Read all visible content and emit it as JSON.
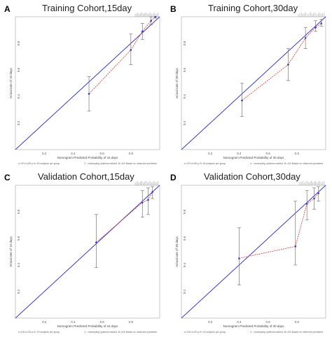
{
  "chart_data": [
    {
      "type": "scatter",
      "letter": "A",
      "title": "Training Cohort,15day",
      "xlabel": "Nomogram Predicted Probability of 15 days",
      "ylabel": "Actual rate of 15 days",
      "xlim": [
        0.0,
        1.0
      ],
      "ylim": [
        0.0,
        1.0
      ],
      "xticks": [
        "0.0",
        "0.2",
        "0.4",
        "0.6",
        "0.8",
        "1.0"
      ],
      "yticks": [
        "0.0",
        "0.2",
        "0.4",
        "0.6",
        "0.8",
        "1.0"
      ],
      "series": [
        {
          "x": [
            0.51,
            0.8,
            0.88,
            0.94,
            0.97
          ],
          "y": [
            0.42,
            0.75,
            0.89,
            0.97,
            1.0
          ],
          "lower": [
            0.29,
            0.64,
            0.83,
            0.94,
            0.99
          ],
          "upper": [
            0.55,
            0.87,
            0.95,
            1.0,
            1.0
          ]
        }
      ],
      "footnote_left": "n=370 d=89 p=5, 50 subjects per group",
      "footnote_right": "X - resampling optimism added, B=100 Based on observed-predicted"
    },
    {
      "type": "scatter",
      "letter": "B",
      "title": "Training Cohort,30day",
      "xlabel": "Nomogram Predicted Probability of 30 days",
      "ylabel": "Actual rate of 30 days",
      "xlim": [
        0.0,
        1.0
      ],
      "ylim": [
        0.0,
        1.0
      ],
      "xticks": [
        "0.0",
        "0.2",
        "0.4",
        "0.6",
        "0.8",
        "1.0"
      ],
      "yticks": [
        "0.0",
        "0.2",
        "0.4",
        "0.6",
        "0.8",
        "1.0"
      ],
      "series": [
        {
          "x": [
            0.42,
            0.74,
            0.86,
            0.93,
            0.97
          ],
          "y": [
            0.37,
            0.64,
            0.84,
            0.92,
            0.95
          ],
          "lower": [
            0.25,
            0.52,
            0.76,
            0.89,
            0.93
          ],
          "upper": [
            0.5,
            0.76,
            0.92,
            0.97,
            0.98
          ]
        }
      ],
      "footnote_left": "n=370 d=89 p=5, 50 subjects per group",
      "footnote_right": "X - resampling optimism added, B=100 Based on observed-predicted"
    },
    {
      "type": "scatter",
      "letter": "C",
      "title": "Validation Cohort,15day",
      "xlabel": "Nomogram Predicted Probability of 15 days",
      "ylabel": "Actual rate of 15 days",
      "xlim": [
        0.0,
        1.0
      ],
      "ylim": [
        0.0,
        1.0
      ],
      "xticks": [
        "0.0",
        "0.2",
        "0.4",
        "0.6",
        "0.8",
        "1.0"
      ],
      "yticks": [
        "0.0",
        "0.2",
        "0.4",
        "0.6",
        "0.8",
        "1.0"
      ],
      "series": [
        {
          "x": [
            0.56,
            0.88,
            0.92,
            0.95
          ],
          "y": [
            0.57,
            0.87,
            0.89,
            0.95
          ],
          "lower": [
            0.38,
            0.76,
            0.78,
            0.9
          ],
          "upper": [
            0.78,
            0.96,
            0.98,
            0.99
          ]
        }
      ],
      "footnote_left": "n=150 d=29 p=5, 30 subjects per group",
      "footnote_right": "X - resampling optimism added, B=100 Based on observed-predicted"
    },
    {
      "type": "scatter",
      "letter": "D",
      "title": "Validation Cohort,30day",
      "xlabel": "Nomogram Predicted Probability of 30 days",
      "ylabel": "Actual rate of 30 days",
      "xlim": [
        0.0,
        1.0
      ],
      "ylim": [
        0.0,
        1.0
      ],
      "xticks": [
        "0.0",
        "0.2",
        "0.4",
        "0.6",
        "0.8",
        "1.0"
      ],
      "yticks": [
        "0.0",
        "0.2",
        "0.4",
        "0.6",
        "0.8",
        "1.0"
      ],
      "series": [
        {
          "x": [
            0.4,
            0.79,
            0.87,
            0.92,
            0.95
          ],
          "y": [
            0.45,
            0.54,
            0.86,
            0.9,
            0.94
          ],
          "lower": [
            0.25,
            0.4,
            0.74,
            0.82,
            0.88
          ],
          "upper": [
            0.68,
            0.88,
            0.96,
            0.98,
            0.99
          ]
        }
      ],
      "footnote_left": "n=150 d=29 p=5, 30 subjects per group",
      "footnote_right": "X - resampling optimism added, B=100 Based on observed-predicted"
    }
  ],
  "colors": {
    "ideal_line": "#3a3ad0",
    "calibration_line": "#e0302a",
    "point": "#3a3ad0",
    "error_bar": "#777777",
    "frame": "#bbbbbb",
    "title": "#222222"
  }
}
